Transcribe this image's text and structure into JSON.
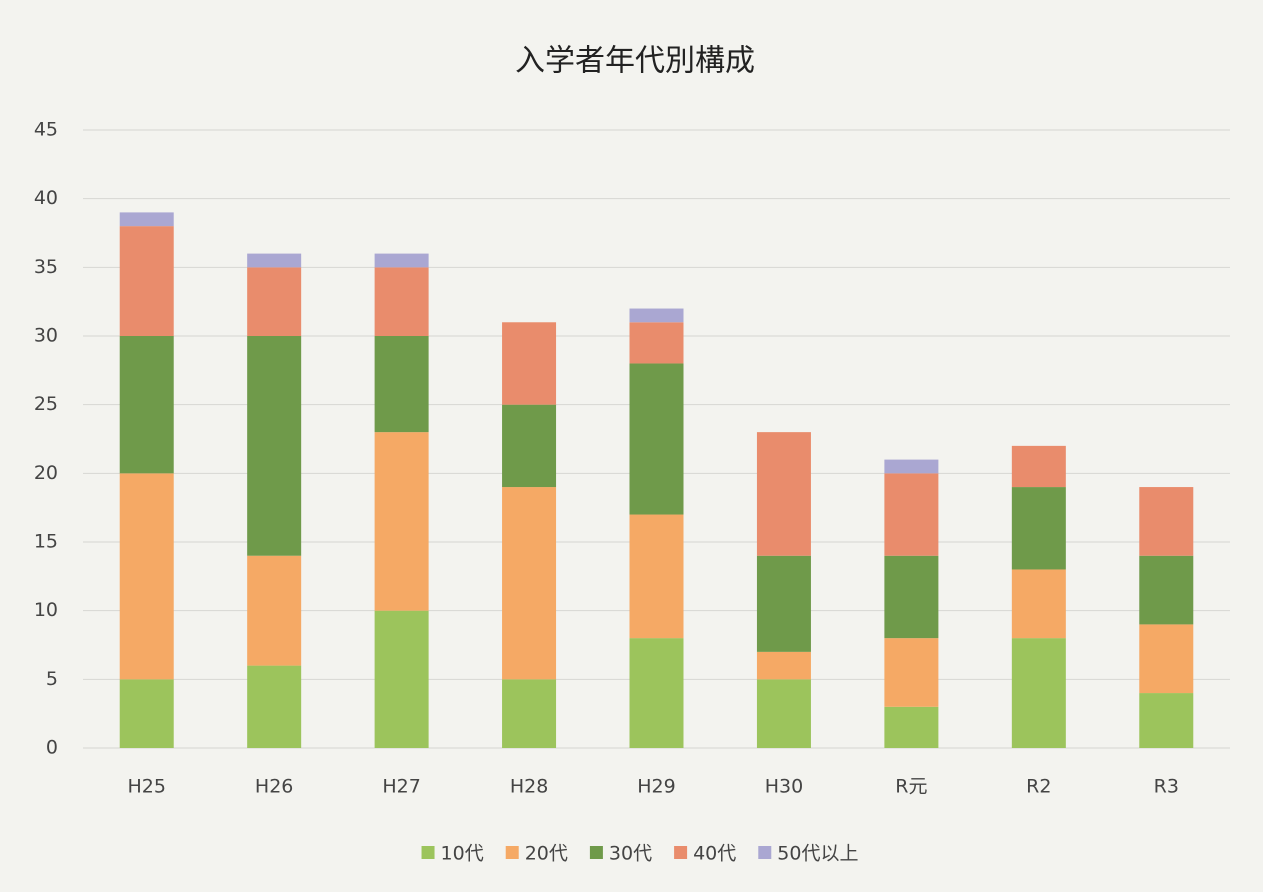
{
  "chart_data": {
    "type": "stacked_bar",
    "title": "入学者年代別構成",
    "categories": [
      "H25",
      "H26",
      "H27",
      "H28",
      "H29",
      "H30",
      "R元",
      "R2",
      "R3"
    ],
    "series": [
      {
        "name": "10代",
        "color": "#9cc45c",
        "values": [
          5,
          6,
          10,
          5,
          8,
          5,
          3,
          8,
          4
        ]
      },
      {
        "name": "20代",
        "color": "#f5a965",
        "values": [
          15,
          8,
          13,
          14,
          9,
          2,
          5,
          5,
          5
        ]
      },
      {
        "name": "30代",
        "color": "#6f9a4a",
        "values": [
          10,
          16,
          7,
          6,
          11,
          7,
          6,
          6,
          5
        ]
      },
      {
        "name": "40代",
        "color": "#e98c6c",
        "values": [
          8,
          5,
          5,
          6,
          3,
          9,
          6,
          3,
          5
        ]
      },
      {
        "name": "50代以上",
        "color": "#aaa7d2",
        "values": [
          1,
          1,
          1,
          0,
          1,
          0,
          1,
          0,
          0
        ]
      }
    ],
    "ylim": [
      0,
      45
    ],
    "yticks": [
      0,
      5,
      10,
      15,
      20,
      25,
      30,
      35,
      40,
      45
    ],
    "grid": true,
    "legend": "bottom"
  }
}
